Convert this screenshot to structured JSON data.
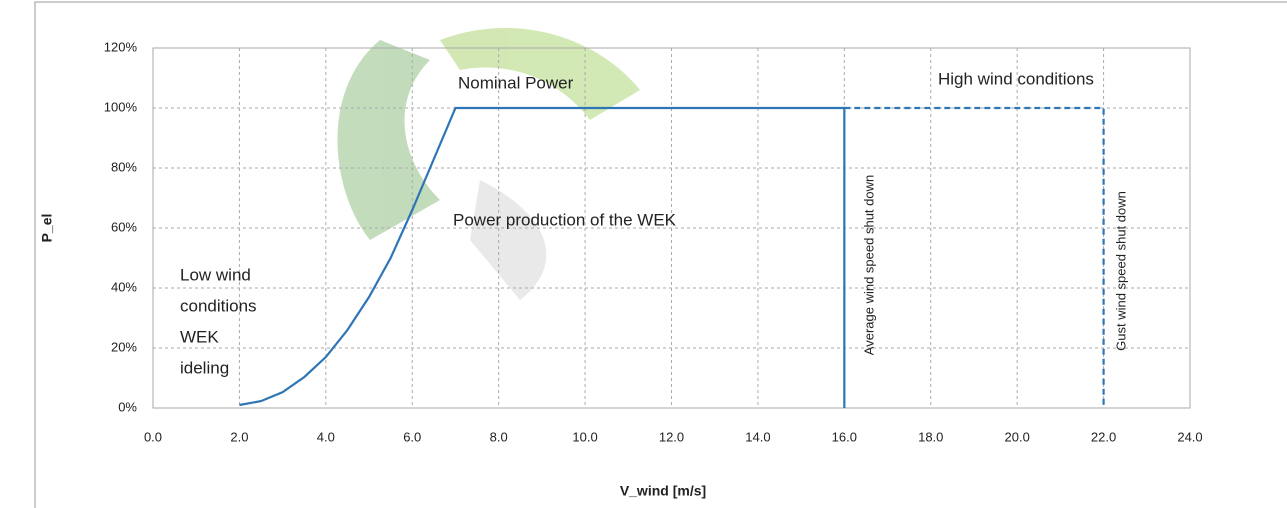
{
  "chart_data": {
    "type": "line",
    "x_label": "V_wind [m/s]",
    "y_label": "P_el",
    "xlim": [
      0,
      24
    ],
    "ylim": [
      0,
      120
    ],
    "xticks": [
      {
        "value": 0,
        "label": "0.0"
      },
      {
        "value": 2,
        "label": "2.0"
      },
      {
        "value": 4,
        "label": "4.0"
      },
      {
        "value": 6,
        "label": "6.0"
      },
      {
        "value": 8,
        "label": "8.0"
      },
      {
        "value": 10,
        "label": "10.0"
      },
      {
        "value": 12,
        "label": "12.0"
      },
      {
        "value": 14,
        "label": "14.0"
      },
      {
        "value": 16,
        "label": "16.0"
      },
      {
        "value": 18,
        "label": "18.0"
      },
      {
        "value": 20,
        "label": "20.0"
      },
      {
        "value": 22,
        "label": "22.0"
      },
      {
        "value": 24,
        "label": "24.0"
      }
    ],
    "yticks": [
      {
        "value": 0,
        "label": "0%"
      },
      {
        "value": 20,
        "label": "20%"
      },
      {
        "value": 40,
        "label": "40%"
      },
      {
        "value": 60,
        "label": "60%"
      },
      {
        "value": 80,
        "label": "80%"
      },
      {
        "value": 100,
        "label": "100%"
      },
      {
        "value": 120,
        "label": "120%"
      }
    ],
    "grid": true,
    "series": [
      {
        "color": "#2e75b6",
        "dashed": false,
        "x": [
          2,
          2.5,
          3,
          3.5,
          4,
          4.5,
          5,
          5.5,
          6,
          6.5,
          7,
          16,
          16
        ],
        "values": [
          1,
          2.3,
          5.3,
          10.3,
          17,
          26,
          37,
          50,
          66,
          83,
          100,
          100,
          0
        ]
      },
      {
        "color": "#2e75b6",
        "dashed": true,
        "x": [
          16,
          22,
          22
        ],
        "values": [
          100,
          100,
          0
        ]
      }
    ],
    "annotations": [
      "Nominal Power",
      "High wind conditions",
      "Power production of the WEK",
      [
        "Low wind",
        "conditions",
        "WEK",
        "ideling"
      ],
      "Average wind speed shut down",
      "Gust wind speed shut down"
    ]
  }
}
